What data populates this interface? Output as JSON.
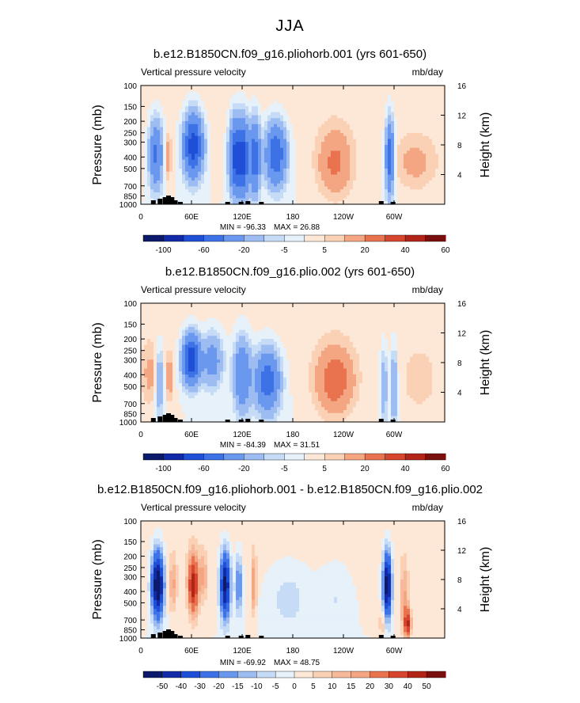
{
  "figure": {
    "title": "JJA",
    "left_axis_label": "Pressure (mb)",
    "right_axis_label": "Height (km)"
  },
  "chart_data": [
    {
      "type": "heatmap",
      "title": "b.e12.B1850CN.f09_g16.pliohorb.001 (yrs 601-650)",
      "field_label": "Vertical pressure velocity",
      "units": "mb/day",
      "xlabel": "",
      "ylabel": "Pressure (mb)",
      "y2label": "Height (km)",
      "x_ticks": [
        "0",
        "60E",
        "120E",
        "180",
        "120W",
        "60W"
      ],
      "x_tick_lon": [
        0,
        60,
        120,
        180,
        240,
        300
      ],
      "xlim": [
        0,
        360
      ],
      "y_ticks": [
        100,
        150,
        200,
        250,
        300,
        400,
        500,
        700,
        850,
        1000
      ],
      "ylim": [
        1000,
        100
      ],
      "y2_ticks": [
        4,
        8,
        12,
        16
      ],
      "min_label": "MIN = -96.33",
      "max_label": "MAX = 26.88",
      "colorbar_levels": [
        -120,
        -100,
        -80,
        -60,
        -40,
        -20,
        -10,
        -5,
        0,
        5,
        10,
        20,
        30,
        40,
        50,
        60
      ],
      "colorbar_labels": [
        "-100",
        "-60",
        "-20",
        "-5",
        "5",
        "20",
        "40",
        "60"
      ],
      "colorbar_label_after": [
        1,
        3,
        5,
        7,
        9,
        11,
        13,
        15
      ],
      "features": [
        {
          "lon": 18,
          "p": 380,
          "value": -45,
          "w": 8,
          "h": 0.55
        },
        {
          "lon": 32,
          "p": 400,
          "value": 18,
          "w": 4,
          "h": 0.35
        },
        {
          "lon": 62,
          "p": 320,
          "value": -75,
          "w": 11,
          "h": 0.5
        },
        {
          "lon": 112,
          "p": 400,
          "value": -70,
          "w": 7,
          "h": 0.6
        },
        {
          "lon": 122,
          "p": 400,
          "value": -65,
          "w": 6,
          "h": 0.6
        },
        {
          "lon": 135,
          "p": 400,
          "value": -55,
          "w": 6,
          "h": 0.6
        },
        {
          "lon": 160,
          "p": 380,
          "value": -60,
          "w": 12,
          "h": 0.5
        },
        {
          "lon": 230,
          "p": 450,
          "value": 22,
          "w": 20,
          "h": 0.55
        },
        {
          "lon": 295,
          "p": 400,
          "value": -55,
          "w": 5,
          "h": 0.6
        },
        {
          "lon": 325,
          "p": 450,
          "value": 12,
          "w": 25,
          "h": 0.45
        }
      ]
    },
    {
      "type": "heatmap",
      "title": "b.e12.B1850CN.f09_g16.plio.002 (yrs 601-650)",
      "field_label": "Vertical pressure velocity",
      "units": "mb/day",
      "xlabel": "",
      "ylabel": "Pressure (mb)",
      "y2label": "Height (km)",
      "x_ticks": [
        "0",
        "60E",
        "120E",
        "180",
        "120W",
        "60W"
      ],
      "x_tick_lon": [
        0,
        60,
        120,
        180,
        240,
        300
      ],
      "xlim": [
        0,
        360
      ],
      "y_ticks": [
        100,
        150,
        200,
        250,
        300,
        400,
        500,
        700,
        850,
        1000
      ],
      "ylim": [
        1000,
        100
      ],
      "y2_ticks": [
        4,
        8,
        12,
        16
      ],
      "min_label": "MIN = -84.39",
      "max_label": "MAX = 31.51",
      "colorbar_levels": [
        -120,
        -100,
        -80,
        -60,
        -40,
        -20,
        -10,
        -5,
        0,
        5,
        10,
        20,
        30,
        40,
        50,
        60
      ],
      "colorbar_labels": [
        "-100",
        "-60",
        "-20",
        "-5",
        "5",
        "20",
        "40",
        "60"
      ],
      "colorbar_label_after": [
        1,
        3,
        5,
        7,
        9,
        11,
        13,
        15
      ],
      "features": [
        {
          "lon": 12,
          "p": 400,
          "value": 12,
          "w": 12,
          "h": 0.5
        },
        {
          "lon": 22,
          "p": 450,
          "value": -25,
          "w": 5,
          "h": 0.55
        },
        {
          "lon": 34,
          "p": 420,
          "value": 15,
          "w": 4,
          "h": 0.4
        },
        {
          "lon": 60,
          "p": 300,
          "value": -80,
          "w": 10,
          "h": 0.4
        },
        {
          "lon": 85,
          "p": 300,
          "value": -30,
          "w": 12,
          "h": 0.45
        },
        {
          "lon": 120,
          "p": 400,
          "value": -40,
          "w": 10,
          "h": 0.6
        },
        {
          "lon": 150,
          "p": 450,
          "value": -55,
          "w": 14,
          "h": 0.5
        },
        {
          "lon": 230,
          "p": 450,
          "value": 28,
          "w": 22,
          "h": 0.55
        },
        {
          "lon": 288,
          "p": 500,
          "value": -20,
          "w": 4,
          "h": 0.6
        },
        {
          "lon": 300,
          "p": 500,
          "value": -25,
          "w": 4,
          "h": 0.6
        },
        {
          "lon": 330,
          "p": 450,
          "value": 8,
          "w": 20,
          "h": 0.5
        }
      ]
    },
    {
      "type": "heatmap",
      "title": "b.e12.B1850CN.f09_g16.pliohorb.001 - b.e12.B1850CN.f09_g16.plio.002",
      "field_label": "Vertical pressure velocity",
      "units": "mb/day",
      "xlabel": "",
      "ylabel": "Pressure (mb)",
      "y2label": "Height (km)",
      "x_ticks": [
        "0",
        "60E",
        "120E",
        "180",
        "120W",
        "60W"
      ],
      "x_tick_lon": [
        0,
        60,
        120,
        180,
        240,
        300
      ],
      "xlim": [
        0,
        360
      ],
      "y_ticks": [
        100,
        150,
        200,
        250,
        300,
        400,
        500,
        700,
        850,
        1000
      ],
      "ylim": [
        1000,
        100
      ],
      "y2_ticks": [
        4,
        8,
        12,
        16
      ],
      "min_label": "MIN = -69.92",
      "max_label": "MAX = 48.75",
      "colorbar_levels": [
        -60,
        -50,
        -40,
        -30,
        -20,
        -15,
        -10,
        -5,
        0,
        5,
        10,
        15,
        20,
        30,
        40,
        50,
        60
      ],
      "colorbar_labels": [
        "-50",
        "-40",
        "-30",
        "-20",
        "-15",
        "-10",
        "-5",
        "0",
        "5",
        "10",
        "15",
        "20",
        "30",
        "40",
        "50"
      ],
      "colorbar_label_after": [
        1,
        2,
        3,
        4,
        5,
        6,
        7,
        8,
        9,
        10,
        11,
        12,
        13,
        14,
        15
      ],
      "features": [
        {
          "lon": 20,
          "p": 350,
          "value": -65,
          "w": 7,
          "h": 0.55
        },
        {
          "lon": 38,
          "p": 350,
          "value": 15,
          "w": 5,
          "h": 0.45
        },
        {
          "lon": 62,
          "p": 350,
          "value": 45,
          "w": 6,
          "h": 0.5
        },
        {
          "lon": 74,
          "p": 300,
          "value": 15,
          "w": 5,
          "h": 0.4
        },
        {
          "lon": 100,
          "p": 350,
          "value": -55,
          "w": 6,
          "h": 0.55
        },
        {
          "lon": 116,
          "p": 350,
          "value": -25,
          "w": 4,
          "h": 0.5
        },
        {
          "lon": 134,
          "p": 350,
          "value": 20,
          "w": 3,
          "h": 0.5
        },
        {
          "lon": 175,
          "p": 450,
          "value": -8,
          "w": 25,
          "h": 0.6
        },
        {
          "lon": 230,
          "p": 450,
          "value": -6,
          "w": 20,
          "h": 0.6
        },
        {
          "lon": 286,
          "p": 750,
          "value": 10,
          "w": 4,
          "h": 0.3
        },
        {
          "lon": 292,
          "p": 350,
          "value": -60,
          "w": 5,
          "h": 0.55
        },
        {
          "lon": 312,
          "p": 450,
          "value": 15,
          "w": 5,
          "h": 0.6
        },
        {
          "lon": 316,
          "p": 750,
          "value": 40,
          "w": 4,
          "h": 0.25
        }
      ]
    }
  ]
}
